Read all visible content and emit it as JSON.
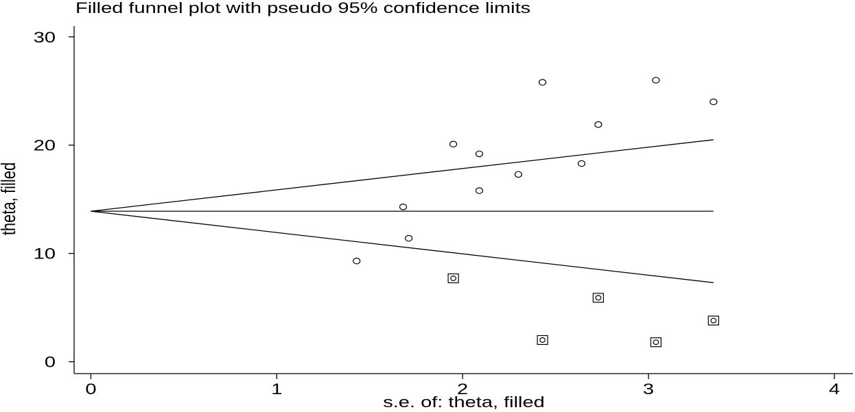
{
  "chart_data": {
    "type": "scatter",
    "title": "Filled funnel plot with pseudo 95% confidence limits",
    "xlabel": "s.e. of: theta, filled",
    "ylabel": "theta, filled",
    "xlim": [
      -0.09,
      4.1
    ],
    "ylim": [
      -1.1,
      31
    ],
    "xticks": [
      0,
      1,
      2,
      3,
      4
    ],
    "yticks": [
      0,
      10,
      20,
      30
    ],
    "grid": false,
    "series": [
      {
        "marker": "hollow-circle",
        "points": [
          [
            1.43,
            9.3
          ],
          [
            1.68,
            14.3
          ],
          [
            1.71,
            11.4
          ],
          [
            1.95,
            20.1
          ],
          [
            2.09,
            19.2
          ],
          [
            2.09,
            15.8
          ],
          [
            2.3,
            17.3
          ],
          [
            2.43,
            25.8
          ],
          [
            2.64,
            18.3
          ],
          [
            2.73,
            21.9
          ],
          [
            3.04,
            26.0
          ],
          [
            3.35,
            24.0
          ]
        ]
      },
      {
        "marker": "boxed-circle",
        "points": [
          [
            1.95,
            7.7
          ],
          [
            2.43,
            2.0
          ],
          [
            2.73,
            5.9
          ],
          [
            3.04,
            1.8
          ],
          [
            3.35,
            3.8
          ]
        ]
      }
    ],
    "lines": [
      {
        "points": [
          [
            0,
            13.9
          ],
          [
            3.35,
            13.9
          ]
        ]
      },
      {
        "points": [
          [
            0,
            13.9
          ],
          [
            3.35,
            20.5
          ]
        ]
      },
      {
        "points": [
          [
            0,
            13.9
          ],
          [
            3.35,
            7.3
          ]
        ]
      }
    ]
  }
}
